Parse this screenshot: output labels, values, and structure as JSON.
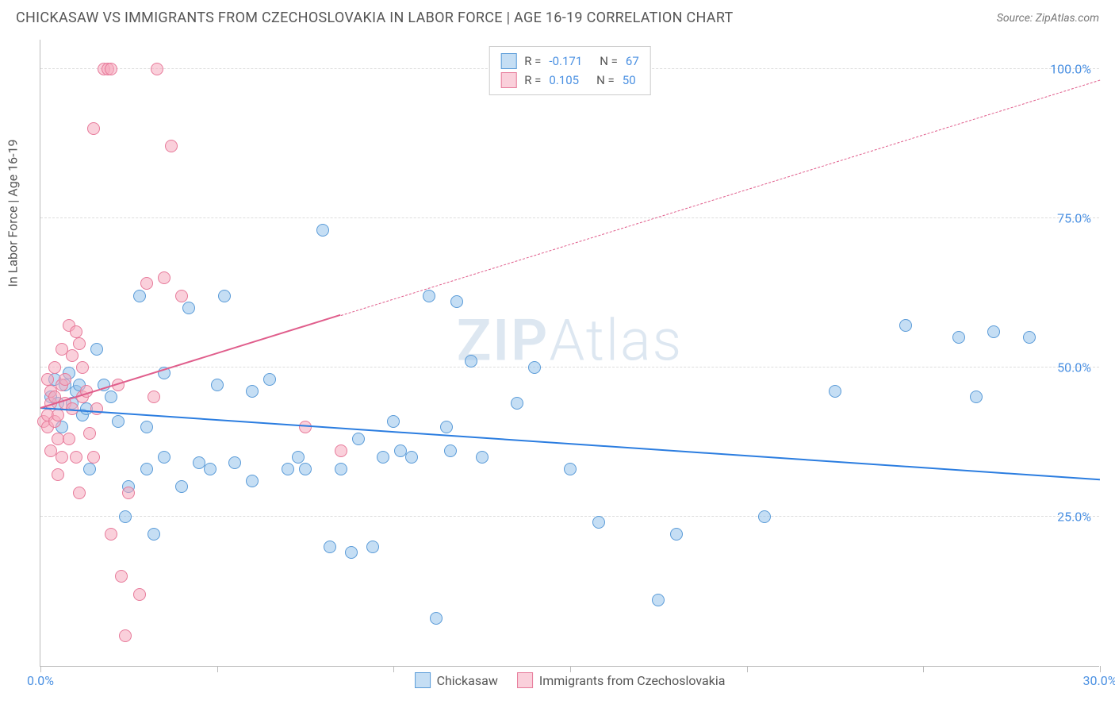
{
  "header": {
    "title": "CHICKASAW VS IMMIGRANTS FROM CZECHOSLOVAKIA IN LABOR FORCE | AGE 16-19 CORRELATION CHART",
    "source": "Source: ZipAtlas.com"
  },
  "watermark": {
    "part1": "ZIP",
    "part2": "Atlas"
  },
  "chart": {
    "type": "scatter",
    "ylabel": "In Labor Force | Age 16-19",
    "xlim": [
      0,
      30
    ],
    "ylim": [
      0,
      105
    ],
    "xtick_positions": [
      0,
      5,
      10,
      15,
      20,
      25,
      30
    ],
    "xtick_labels": {
      "0": "0.0%",
      "30": "30.0%"
    },
    "ytick_positions": [
      25,
      50,
      75,
      100
    ],
    "ytick_labels": {
      "25": "25.0%",
      "50": "50.0%",
      "75": "75.0%",
      "100": "100.0%"
    },
    "background_color": "#ffffff",
    "grid_color": "#dddddd",
    "axis_color": "#bbbbbb",
    "tick_label_color": "#4a90e2",
    "point_radius": 8,
    "series": [
      {
        "name": "Chickasaw",
        "fill_color": "rgba(150, 195, 235, 0.55)",
        "stroke_color": "#5a9bd8",
        "trend_color": "#2b7de0",
        "R": "-0.171",
        "N": "67",
        "trend": {
          "x1": 0,
          "y1": 43,
          "x2": 30,
          "y2": 31,
          "dashed_from_x": null
        },
        "points": [
          [
            0.3,
            45
          ],
          [
            0.4,
            48
          ],
          [
            0.5,
            44
          ],
          [
            0.6,
            40
          ],
          [
            0.7,
            47
          ],
          [
            0.8,
            49
          ],
          [
            0.9,
            44
          ],
          [
            1.0,
            46
          ],
          [
            1.1,
            47
          ],
          [
            1.2,
            42
          ],
          [
            1.3,
            43
          ],
          [
            1.4,
            33
          ],
          [
            1.6,
            53
          ],
          [
            1.8,
            47
          ],
          [
            2.0,
            45
          ],
          [
            2.2,
            41
          ],
          [
            2.4,
            25
          ],
          [
            2.5,
            30
          ],
          [
            2.8,
            62
          ],
          [
            3.0,
            40
          ],
          [
            3.0,
            33
          ],
          [
            3.2,
            22
          ],
          [
            3.5,
            49
          ],
          [
            3.5,
            35
          ],
          [
            4.0,
            30
          ],
          [
            4.2,
            60
          ],
          [
            4.5,
            34
          ],
          [
            4.8,
            33
          ],
          [
            5.0,
            47
          ],
          [
            5.2,
            62
          ],
          [
            5.5,
            34
          ],
          [
            6.0,
            31
          ],
          [
            6.0,
            46
          ],
          [
            6.5,
            48
          ],
          [
            7.0,
            33
          ],
          [
            7.3,
            35
          ],
          [
            7.5,
            33
          ],
          [
            8.0,
            73
          ],
          [
            8.2,
            20
          ],
          [
            8.5,
            33
          ],
          [
            8.8,
            19
          ],
          [
            9.0,
            38
          ],
          [
            9.4,
            20
          ],
          [
            9.7,
            35
          ],
          [
            10.0,
            41
          ],
          [
            10.2,
            36
          ],
          [
            10.5,
            35
          ],
          [
            11.0,
            62
          ],
          [
            11.2,
            8
          ],
          [
            11.5,
            40
          ],
          [
            11.6,
            36
          ],
          [
            11.8,
            61
          ],
          [
            12.2,
            51
          ],
          [
            12.5,
            35
          ],
          [
            13.5,
            44
          ],
          [
            14.0,
            50
          ],
          [
            15.0,
            33
          ],
          [
            15.8,
            24
          ],
          [
            17.5,
            11
          ],
          [
            18.0,
            22
          ],
          [
            20.5,
            25
          ],
          [
            22.5,
            46
          ],
          [
            24.5,
            57
          ],
          [
            26.0,
            55
          ],
          [
            26.5,
            45
          ],
          [
            27.0,
            56
          ],
          [
            28.0,
            55
          ]
        ]
      },
      {
        "name": "Immigrants from Czechoslovakia",
        "fill_color": "rgba(245, 170, 190, 0.55)",
        "stroke_color": "#e77a9a",
        "trend_color": "#e05e8c",
        "R": "0.105",
        "N": "50",
        "trend": {
          "x1": 0,
          "y1": 43,
          "x2": 30,
          "y2": 98,
          "dashed_from_x": 8.5
        },
        "points": [
          [
            0.1,
            41
          ],
          [
            0.2,
            42
          ],
          [
            0.2,
            40
          ],
          [
            0.2,
            48
          ],
          [
            0.3,
            44
          ],
          [
            0.3,
            36
          ],
          [
            0.3,
            46
          ],
          [
            0.4,
            41
          ],
          [
            0.4,
            45
          ],
          [
            0.4,
            50
          ],
          [
            0.5,
            42
          ],
          [
            0.5,
            32
          ],
          [
            0.5,
            38
          ],
          [
            0.6,
            47
          ],
          [
            0.6,
            53
          ],
          [
            0.6,
            35
          ],
          [
            0.7,
            44
          ],
          [
            0.7,
            48
          ],
          [
            0.8,
            38
          ],
          [
            0.8,
            57
          ],
          [
            0.9,
            43
          ],
          [
            0.9,
            52
          ],
          [
            1.0,
            56
          ],
          [
            1.0,
            35
          ],
          [
            1.1,
            54
          ],
          [
            1.1,
            29
          ],
          [
            1.2,
            50
          ],
          [
            1.2,
            45
          ],
          [
            1.3,
            46
          ],
          [
            1.4,
            39
          ],
          [
            1.5,
            90
          ],
          [
            1.5,
            35
          ],
          [
            1.6,
            43
          ],
          [
            1.8,
            100
          ],
          [
            1.9,
            100
          ],
          [
            2.0,
            100
          ],
          [
            2.0,
            22
          ],
          [
            2.2,
            47
          ],
          [
            2.3,
            15
          ],
          [
            2.4,
            5
          ],
          [
            2.5,
            29
          ],
          [
            2.8,
            12
          ],
          [
            3.0,
            64
          ],
          [
            3.2,
            45
          ],
          [
            3.3,
            100
          ],
          [
            3.5,
            65
          ],
          [
            3.7,
            87
          ],
          [
            4.0,
            62
          ],
          [
            7.5,
            40
          ],
          [
            8.5,
            36
          ]
        ]
      }
    ],
    "legend_top": {
      "R_label": "R =",
      "N_label": "N ="
    },
    "legend_bottom": {
      "items": [
        "Chickasaw",
        "Immigrants from Czechoslovakia"
      ]
    }
  }
}
